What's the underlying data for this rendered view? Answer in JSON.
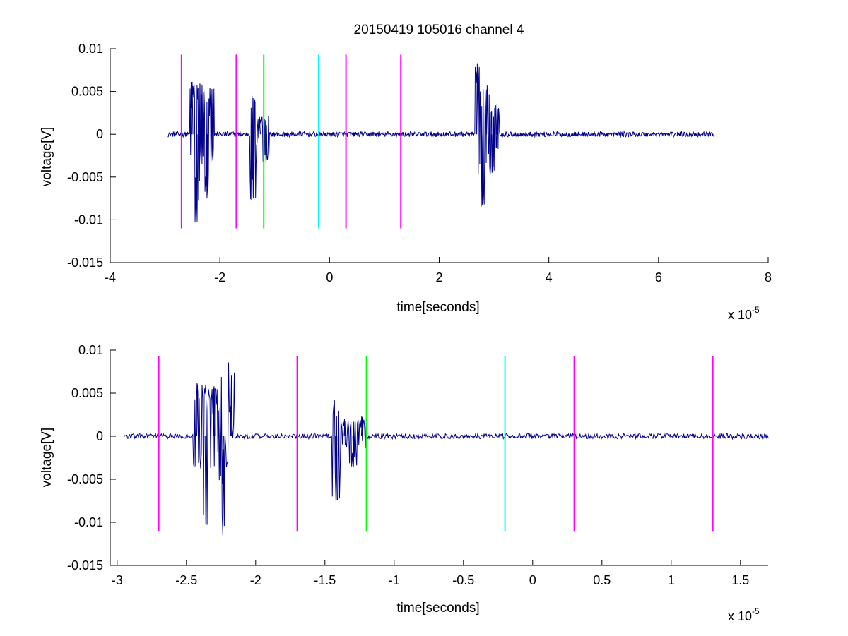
{
  "title": "20150419 105016 channel 4",
  "colors": {
    "signal": "#00008b",
    "magenta": "#ff00ff",
    "green": "#00ff00",
    "cyan": "#00ffff",
    "axes": "#000000",
    "background": "#ffffff"
  },
  "chart_data": [
    {
      "type": "line",
      "xlabel": "time[seconds]",
      "ylabel": "voltage[V]",
      "x_exponent": "x 10",
      "x_exponent_power": "-5",
      "x_scale_note": "x values in units of 1e-5 s",
      "xlim": [
        -4,
        8
      ],
      "ylim": [
        -0.015,
        0.01
      ],
      "xticks": [
        -4,
        -2,
        0,
        2,
        4,
        6,
        8
      ],
      "xtick_labels": [
        "-4",
        "-2",
        "0",
        "2",
        "4",
        "6",
        "8"
      ],
      "yticks": [
        -0.015,
        -0.01,
        -0.005,
        0,
        0.005,
        0.01
      ],
      "ytick_labels": [
        "-0.015",
        "-0.01",
        "-0.005",
        "0",
        "0.005",
        "0.01"
      ],
      "grid": false,
      "signal": {
        "x_start": -2.95,
        "x_end": 7.0,
        "baseline": 0.0,
        "noise_amplitude": 0.0003,
        "bursts": [
          {
            "t": -2.55,
            "duration": 0.45,
            "peaks": [
              0.0061,
              -0.0102,
              0.0058,
              -0.0075,
              0.0053
            ]
          },
          {
            "t": -1.45,
            "duration": 0.35,
            "peaks": [
              -0.0075,
              0.0018,
              -0.0035
            ]
          },
          {
            "t": 2.65,
            "duration": 0.45,
            "peaks": [
              0.0083,
              -0.0083,
              0.0057,
              -0.0045,
              0.0035
            ]
          }
        ]
      },
      "markers": [
        {
          "x": -2.7,
          "color": "magenta",
          "y0": -0.011,
          "y1": 0.0093
        },
        {
          "x": -1.7,
          "color": "magenta",
          "y0": -0.011,
          "y1": 0.0093
        },
        {
          "x": -1.2,
          "color": "green",
          "y0": -0.011,
          "y1": 0.0093
        },
        {
          "x": -0.2,
          "color": "cyan",
          "y0": -0.011,
          "y1": 0.0093
        },
        {
          "x": 0.3,
          "color": "magenta",
          "y0": -0.011,
          "y1": 0.0093
        },
        {
          "x": 1.3,
          "color": "magenta",
          "y0": -0.011,
          "y1": 0.0093
        }
      ]
    },
    {
      "type": "line",
      "xlabel": "time[seconds]",
      "ylabel": "voltage[V]",
      "x_exponent": "x 10",
      "x_exponent_power": "-5",
      "x_scale_note": "x values in units of 1e-5 s",
      "xlim": [
        -3.05,
        1.7
      ],
      "ylim": [
        -0.015,
        0.01
      ],
      "xticks": [
        -3,
        -2.5,
        -2,
        -1.5,
        -1,
        -0.5,
        0,
        0.5,
        1,
        1.5
      ],
      "xtick_labels": [
        "-3",
        "-2.5",
        "-2",
        "-1.5",
        "-1",
        "-0.5",
        "0",
        "0.5",
        "1",
        "1.5"
      ],
      "yticks": [
        -0.015,
        -0.01,
        -0.005,
        0,
        0.005,
        0.01
      ],
      "ytick_labels": [
        "-0.015",
        "-0.01",
        "-0.005",
        "0",
        "0.005",
        "0.01"
      ],
      "grid": false,
      "signal": {
        "x_start": -2.95,
        "x_end": 1.7,
        "baseline": 0.0,
        "noise_amplitude": 0.0003,
        "bursts": [
          {
            "t": -2.45,
            "duration": 0.3,
            "peaks": [
              0.006,
              -0.0102,
              0.0058,
              -0.0055,
              0.0035
            ]
          },
          {
            "t": -2.25,
            "duration": 0.1,
            "peaks": [
              -0.0075,
              0.0053
            ]
          },
          {
            "t": -1.45,
            "duration": 0.25,
            "peaks": [
              -0.0075,
              0.0018,
              -0.0035,
              0.0022
            ]
          }
        ]
      },
      "markers": [
        {
          "x": -2.7,
          "color": "magenta",
          "y0": -0.011,
          "y1": 0.0093
        },
        {
          "x": -1.7,
          "color": "magenta",
          "y0": -0.011,
          "y1": 0.0093
        },
        {
          "x": -1.2,
          "color": "green",
          "y0": -0.011,
          "y1": 0.0093
        },
        {
          "x": -0.2,
          "color": "cyan",
          "y0": -0.011,
          "y1": 0.0093
        },
        {
          "x": 0.3,
          "color": "magenta",
          "y0": -0.011,
          "y1": 0.0093
        },
        {
          "x": 1.3,
          "color": "magenta",
          "y0": -0.011,
          "y1": 0.0093
        }
      ]
    }
  ]
}
